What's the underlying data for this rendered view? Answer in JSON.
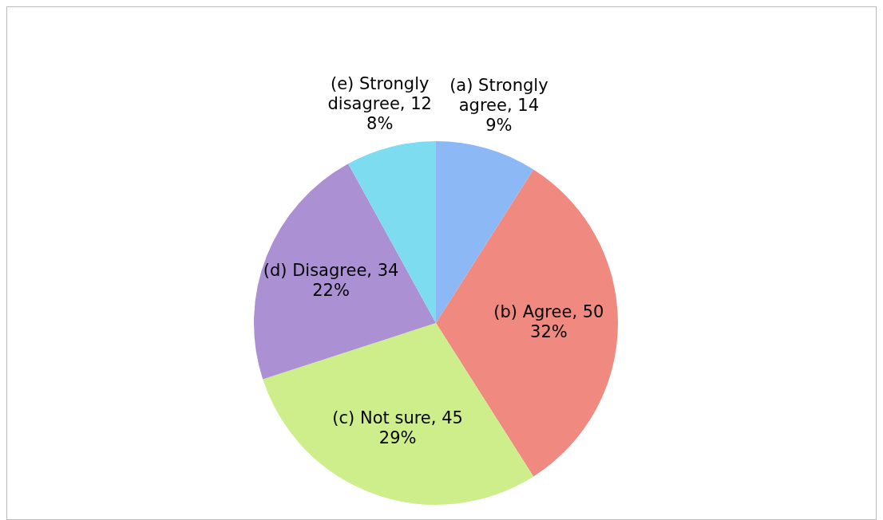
{
  "chart_data": {
    "type": "pie",
    "categories": [
      "(a) Strongly agree, 14",
      "(b) Agree, 50",
      "(c) Not sure, 45",
      "(d) Disagree, 34",
      "(e) Strongly disagree, 12"
    ],
    "values": [
      9,
      32,
      29,
      22,
      8
    ],
    "colors": [
      "#8cb8f5",
      "#f08a80",
      "#cdee8a",
      "#ab90d3",
      "#7ddcef"
    ],
    "value_labels": [
      "9%",
      "32%",
      "29%",
      "22%",
      "8%"
    ],
    "data_labels": true,
    "legend": false
  }
}
